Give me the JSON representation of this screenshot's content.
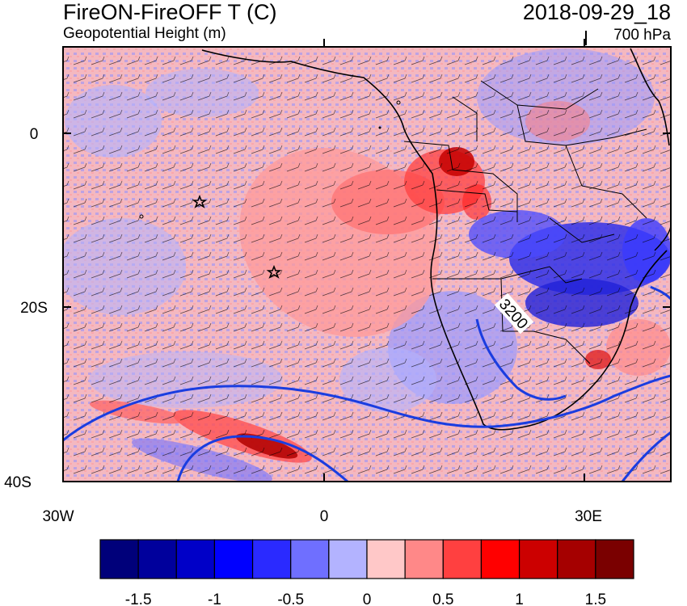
{
  "header": {
    "title": "FireON-FireOFF T (C)",
    "subtitle": "Geopotential Height (m)",
    "date": "2018-09-29_18",
    "level": "700 hPa"
  },
  "map": {
    "lat_ticks": [
      "0",
      "20S",
      "40S"
    ],
    "lon_ticks": [
      "30W",
      "0",
      "30E"
    ],
    "contour_label": "3200",
    "markers": [
      "star",
      "star"
    ]
  },
  "colorbar": {
    "tick_labels": [
      "-1.5",
      "-1",
      "-0.5",
      "0",
      "0.5",
      "1",
      "1.5"
    ],
    "colors": [
      "#00007a",
      "#00009c",
      "#0000c8",
      "#0000ff",
      "#2a2aff",
      "#6f6fff",
      "#b3b3ff",
      "#ffc8c8",
      "#ff8888",
      "#ff4040",
      "#ff0000",
      "#cc0000",
      "#a50000",
      "#7a0000"
    ]
  },
  "colors": {
    "contour": "#1a3de0",
    "coast": "#000000",
    "bg_pos": "#ffbfc0",
    "bg_neg": "#a8a8ff"
  }
}
